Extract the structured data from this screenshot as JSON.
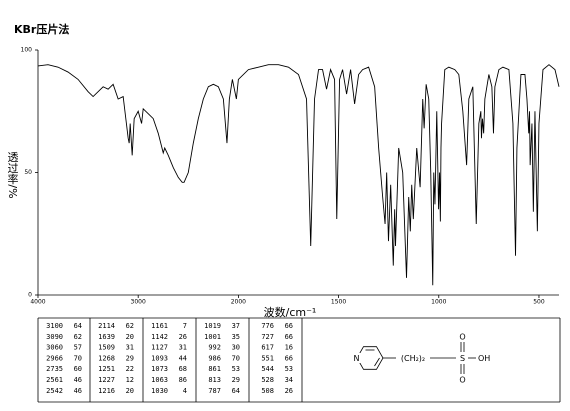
{
  "chart_data": {
    "type": "line",
    "title": "KBr压片法",
    "x_label": "波数/cm⁻¹",
    "y_label": "透过率/%",
    "x": [
      4000,
      3900,
      3800,
      3700,
      3600,
      3500,
      3450,
      3400,
      3350,
      3300,
      3250,
      3200,
      3150,
      3100,
      3090,
      3080,
      3060,
      3040,
      3000,
      2966,
      2950,
      2900,
      2850,
      2800,
      2750,
      2735,
      2700,
      2650,
      2600,
      2561,
      2542,
      2500,
      2450,
      2400,
      2350,
      2300,
      2250,
      2200,
      2150,
      2114,
      2090,
      2060,
      2040,
      2020,
      2000,
      1950,
      1900,
      1850,
      1800,
      1750,
      1700,
      1660,
      1639,
      1620,
      1600,
      1580,
      1560,
      1540,
      1520,
      1509,
      1495,
      1480,
      1460,
      1440,
      1420,
      1400,
      1380,
      1350,
      1320,
      1300,
      1280,
      1268,
      1260,
      1251,
      1240,
      1227,
      1220,
      1216,
      1200,
      1180,
      1161,
      1150,
      1142,
      1135,
      1127,
      1110,
      1093,
      1080,
      1073,
      1063,
      1050,
      1040,
      1030,
      1025,
      1019,
      1010,
      1001,
      996,
      992,
      989,
      986,
      970,
      950,
      920,
      900,
      880,
      861,
      850,
      830,
      813,
      800,
      790,
      787,
      782,
      776,
      770,
      750,
      735,
      727,
      720,
      700,
      680,
      650,
      630,
      617,
      610,
      590,
      570,
      560,
      551,
      547,
      544,
      535,
      528,
      520,
      508,
      500,
      480,
      450,
      420,
      400
    ],
    "values": [
      93.5,
      94,
      93,
      91,
      88,
      83,
      81,
      83,
      85,
      84,
      86,
      80,
      81,
      64,
      62,
      70,
      57,
      72,
      75,
      70,
      76,
      74,
      72,
      66,
      58,
      60,
      57,
      52,
      48,
      46,
      46,
      50,
      62,
      72,
      80,
      85,
      86,
      85,
      80,
      62,
      80,
      88,
      84,
      80,
      88,
      92,
      93,
      94,
      94,
      93,
      90,
      80,
      20,
      80,
      92,
      92,
      84,
      92,
      88,
      31,
      88,
      92,
      82,
      92,
      78,
      90,
      92,
      93,
      85,
      60,
      40,
      29,
      50,
      22,
      45,
      12,
      35,
      20,
      60,
      50,
      7,
      40,
      26,
      45,
      31,
      60,
      44,
      80,
      68,
      86,
      80,
      50,
      4,
      50,
      37,
      75,
      35,
      50,
      30,
      60,
      70,
      92,
      93,
      92,
      90,
      75,
      53,
      80,
      85,
      29,
      70,
      75,
      64,
      72,
      66,
      80,
      90,
      85,
      66,
      85,
      92,
      93,
      92,
      70,
      16,
      60,
      90,
      90,
      80,
      66,
      75,
      53,
      70,
      34,
      75,
      26,
      70,
      92,
      94,
      92,
      85
    ],
    "color": "#000000",
    "xlim": [
      4000,
      400
    ],
    "xticks": [
      4000,
      3000,
      2000,
      1500,
      1000,
      500
    ],
    "ylim": [
      0,
      100
    ],
    "yticks": [
      0,
      50,
      100
    ],
    "grid": false
  },
  "peak_table": [
    [
      [
        "3100",
        "64"
      ],
      [
        "3090",
        "62"
      ],
      [
        "3060",
        "57"
      ],
      [
        "2966",
        "70"
      ],
      [
        "2735",
        "60"
      ],
      [
        "2561",
        "46"
      ],
      [
        "2542",
        "46"
      ]
    ],
    [
      [
        "2114",
        "62"
      ],
      [
        "1639",
        "20"
      ],
      [
        "1509",
        "31"
      ],
      [
        "1268",
        "29"
      ],
      [
        "1251",
        "22"
      ],
      [
        "1227",
        "12"
      ],
      [
        "1216",
        "20"
      ]
    ],
    [
      [
        "1161",
        "7"
      ],
      [
        "1142",
        "26"
      ],
      [
        "1127",
        "31"
      ],
      [
        "1093",
        "44"
      ],
      [
        "1073",
        "68"
      ],
      [
        "1063",
        "86"
      ],
      [
        "1030",
        "4"
      ]
    ],
    [
      [
        "1019",
        "37"
      ],
      [
        "1001",
        "35"
      ],
      [
        "992",
        "30"
      ],
      [
        "986",
        "70"
      ],
      [
        "861",
        "53"
      ],
      [
        "813",
        "29"
      ],
      [
        "787",
        "64"
      ]
    ],
    [
      [
        "776",
        "66"
      ],
      [
        "727",
        "66"
      ],
      [
        "617",
        "16"
      ],
      [
        "551",
        "66"
      ],
      [
        "544",
        "53"
      ],
      [
        "528",
        "34"
      ],
      [
        "508",
        "26"
      ]
    ]
  ],
  "structure": {
    "ring_atom": "N",
    "chain": "(CH₂)₂",
    "center": "S",
    "oxygen_top": "O",
    "oxygen_bottom": "O",
    "hydroxyl": "OH"
  }
}
